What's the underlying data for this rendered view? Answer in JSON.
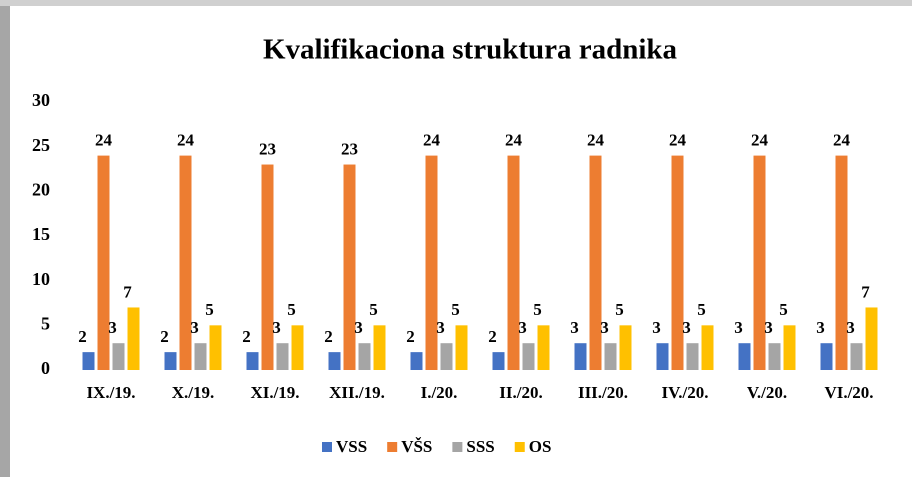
{
  "chart_data": {
    "type": "bar",
    "title": "Kvalifikaciona struktura radnika",
    "categories": [
      "IX./19.",
      "X./19.",
      "XI./19.",
      "XII./19.",
      "I./20.",
      "II./20.",
      "III./20.",
      "IV./20.",
      "V./20.",
      "VI./20."
    ],
    "series": [
      {
        "name": "VSS",
        "color": "#4472c4",
        "values": [
          2,
          2,
          2,
          2,
          2,
          2,
          3,
          3,
          3,
          3
        ]
      },
      {
        "name": "VŠS",
        "color": "#ed7d31",
        "values": [
          24,
          24,
          23,
          23,
          24,
          24,
          24,
          24,
          24,
          24
        ]
      },
      {
        "name": "SSS",
        "color": "#a5a5a5",
        "values": [
          3,
          3,
          3,
          3,
          3,
          3,
          3,
          3,
          3,
          3
        ]
      },
      {
        "name": "OS",
        "color": "#ffc000",
        "values": [
          7,
          5,
          5,
          5,
          5,
          5,
          5,
          5,
          5,
          7
        ]
      }
    ],
    "ylim": [
      0,
      30
    ],
    "yticks": [
      0,
      5,
      10,
      15,
      20,
      25,
      30
    ],
    "grid": false,
    "legend": "bottom"
  }
}
